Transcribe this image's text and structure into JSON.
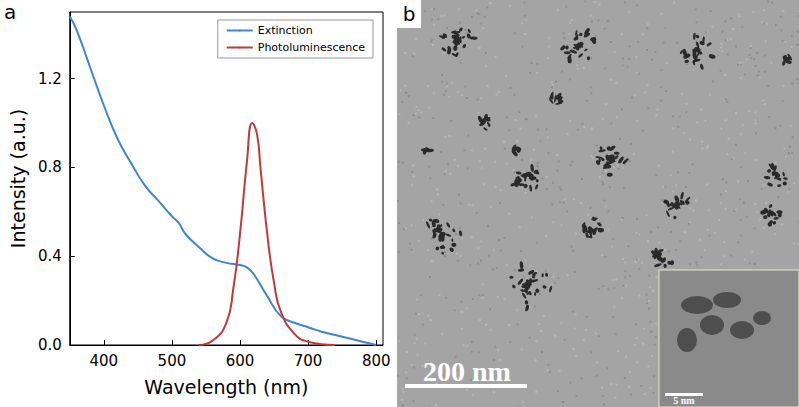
{
  "chart_data": {
    "type": "line",
    "panel_label": "a",
    "x_label": "Wavelength (nm)",
    "y_label": "Intensity (a.u.)",
    "xlim": [
      350,
      810
    ],
    "xticks": [
      400,
      500,
      600,
      700,
      800
    ],
    "ylim": [
      0,
      1.5
    ],
    "yticks": [
      {
        "value": 0,
        "label": "0.0"
      },
      0.4,
      0.8,
      1.2
    ],
    "legend": "upper right",
    "grid": false,
    "series": [
      {
        "name": "Extinction",
        "color": "#3f86cf",
        "x": [
          350,
          360,
          380,
          400,
          420,
          440,
          460,
          480,
          500,
          510,
          520,
          540,
          560,
          580,
          600,
          610,
          620,
          640,
          660,
          680,
          700,
          720,
          740,
          760,
          780,
          800
        ],
        "values": [
          1.48,
          1.42,
          1.25,
          1.08,
          0.93,
          0.82,
          0.72,
          0.65,
          0.58,
          0.55,
          0.5,
          0.44,
          0.39,
          0.37,
          0.36,
          0.35,
          0.32,
          0.22,
          0.13,
          0.1,
          0.08,
          0.06,
          0.045,
          0.03,
          0.015,
          0.0
        ]
      },
      {
        "name": "Photoluminescence",
        "color": "#c0393b",
        "x": [
          540,
          560,
          580,
          590,
          600,
          610,
          618,
          625,
          630,
          640,
          650,
          660,
          680,
          700,
          740
        ],
        "values": [
          0.0,
          0.02,
          0.1,
          0.25,
          0.5,
          0.82,
          1.0,
          0.95,
          0.8,
          0.5,
          0.28,
          0.15,
          0.05,
          0.015,
          0.0
        ]
      }
    ]
  },
  "image_panel": {
    "panel_label": "b",
    "scale_bar": "200 nm",
    "inset_scale_bar": "5 nm"
  }
}
